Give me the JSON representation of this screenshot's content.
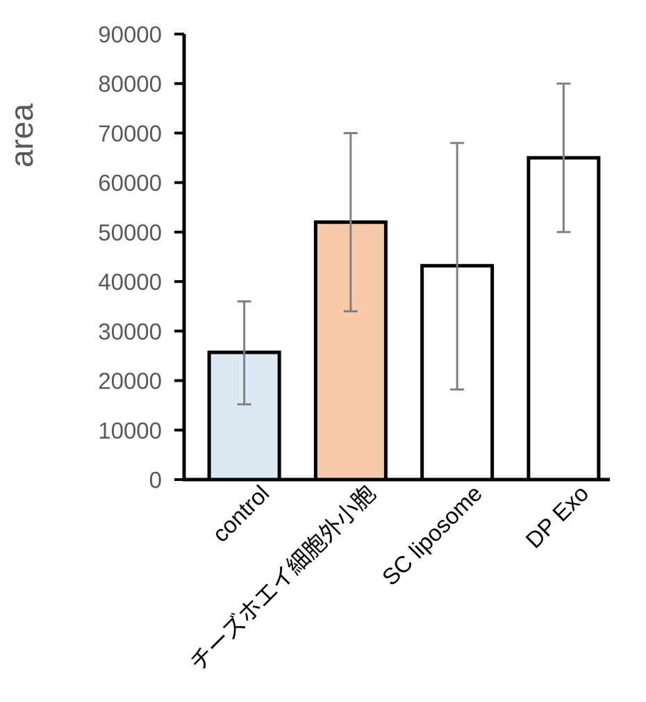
{
  "chart_data": {
    "type": "bar",
    "title": "",
    "xlabel": "",
    "ylabel": "area",
    "ylim": [
      0,
      90000
    ],
    "yticks": [
      0,
      10000,
      20000,
      30000,
      40000,
      50000,
      60000,
      70000,
      80000,
      90000
    ],
    "categories": [
      "control",
      "チーズホエイ細胞外小胞",
      "SC liposome",
      "DP Exo"
    ],
    "values": [
      25700,
      52000,
      43200,
      65000
    ],
    "error_low": [
      15200,
      34000,
      18200,
      50000
    ],
    "error_high": [
      36000,
      70000,
      68000,
      80000
    ],
    "bar_fill_colors": [
      "#dce8f4",
      "#f6caab",
      "#ffffff",
      "#ffffff"
    ],
    "bar_stroke_color": "#000000",
    "error_bar_color": "#808080",
    "grid": false,
    "legend": "none"
  }
}
